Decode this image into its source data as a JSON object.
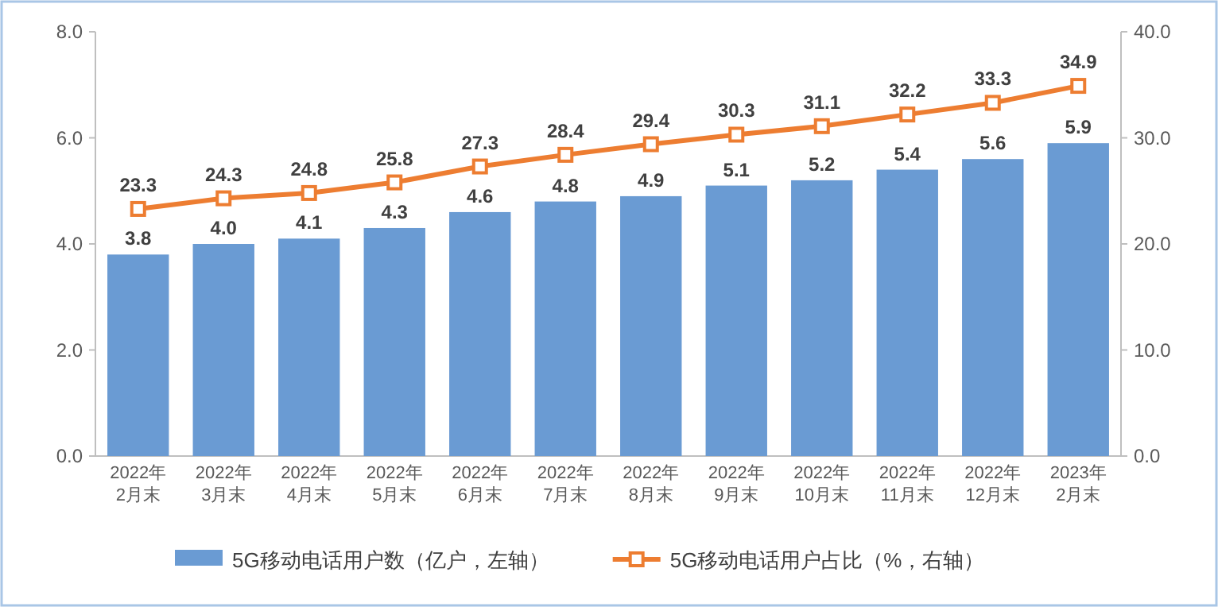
{
  "chart_data": {
    "type": "bar",
    "categories": [
      "2022年\n2月末",
      "2022年\n3月末",
      "2022年\n4月末",
      "2022年\n5月末",
      "2022年\n6月末",
      "2022年\n7月末",
      "2022年\n8月末",
      "2022年\n9月末",
      "2022年\n10月末",
      "2022年\n11月末",
      "2022年\n12月末",
      "2023年\n2月末"
    ],
    "series": [
      {
        "name": "5G移动电话用户数（亿户，左轴）",
        "color": "#6a9bd3",
        "values": [
          3.8,
          4.0,
          4.1,
          4.3,
          4.6,
          4.8,
          4.9,
          5.1,
          5.2,
          5.4,
          5.6,
          5.9
        ],
        "value_labels": [
          "3.8",
          "4.0",
          "4.1",
          "4.3",
          "4.6",
          "4.8",
          "4.9",
          "5.1",
          "5.2",
          "5.4",
          "5.6",
          "5.9"
        ]
      },
      {
        "name": "5G移动电话用户占比（%，右轴）",
        "color": "#ed7d31",
        "type": "line",
        "axis": "y2",
        "marker": "square",
        "values": [
          23.3,
          24.3,
          24.8,
          25.8,
          27.3,
          28.4,
          29.4,
          30.3,
          31.1,
          32.2,
          33.3,
          34.9
        ],
        "value_labels": [
          "23.3",
          "24.3",
          "24.8",
          "25.8",
          "27.3",
          "28.4",
          "29.4",
          "30.3",
          "31.1",
          "32.2",
          "33.3",
          "34.9"
        ]
      }
    ],
    "ylim": [
      0,
      8
    ],
    "yticks": [
      {
        "value": 0,
        "label": "0.0"
      },
      {
        "value": 2,
        "label": "2.0"
      },
      {
        "value": 4,
        "label": "4.0"
      },
      {
        "value": 6,
        "label": "6.0"
      },
      {
        "value": 8,
        "label": "8.0"
      }
    ],
    "y2lim": [
      0,
      40
    ],
    "y2ticks": [
      {
        "value": 0,
        "label": "0.0"
      },
      {
        "value": 10,
        "label": "10.0"
      },
      {
        "value": 20,
        "label": "20.0"
      },
      {
        "value": 30,
        "label": "30.0"
      },
      {
        "value": 40,
        "label": "40.0"
      }
    ],
    "grid": false,
    "legend": "bottom"
  }
}
